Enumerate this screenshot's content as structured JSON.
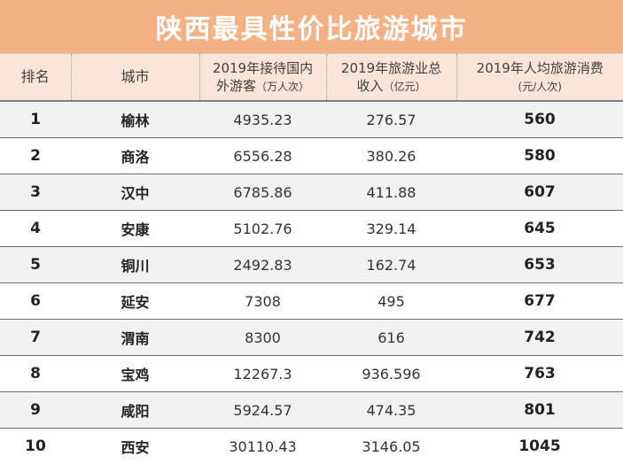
{
  "title": "陕西最具性价比旅游城市",
  "headers": {
    "rank": "排名",
    "city": "城市",
    "visitors_line1": "2019年接待国内",
    "visitors_line2": "外游客",
    "visitors_unit": "（万人次）",
    "revenue_line1": "2019年旅游业总",
    "revenue_line2": "收入",
    "revenue_unit": "（亿元）",
    "cost_line1": "2019年人均旅游消费",
    "cost_unit": "(元/人次)"
  },
  "rows": [
    {
      "rank": "1",
      "city": "榆林",
      "visitors": "4935.23",
      "revenue": "276.57",
      "cost": "560"
    },
    {
      "rank": "2",
      "city": "商洛",
      "visitors": "6556.28",
      "revenue": "380.26",
      "cost": "580"
    },
    {
      "rank": "3",
      "city": "汉中",
      "visitors": "6785.86",
      "revenue": "411.88",
      "cost": "607"
    },
    {
      "rank": "4",
      "city": "安康",
      "visitors": "5102.76",
      "revenue": "329.14",
      "cost": "645"
    },
    {
      "rank": "5",
      "city": "铜川",
      "visitors": "2492.83",
      "revenue": "162.74",
      "cost": "653"
    },
    {
      "rank": "6",
      "city": "延安",
      "visitors": "7308",
      "revenue": "495",
      "cost": "677"
    },
    {
      "rank": "7",
      "city": "渭南",
      "visitors": "8300",
      "revenue": "616",
      "cost": "742"
    },
    {
      "rank": "8",
      "city": "宝鸡",
      "visitors": "12267.3",
      "revenue": "936.596",
      "cost": "763"
    },
    {
      "rank": "9",
      "city": "咸阳",
      "visitors": "5924.57",
      "revenue": "474.35",
      "cost": "801"
    },
    {
      "rank": "10",
      "city": "西安",
      "visitors": "30110.43",
      "revenue": "3146.05",
      "cost": "1045"
    }
  ],
  "colors": {
    "title_bg": "#f4b183",
    "header_bg": "#fbe5d6",
    "stripe_bg": "#f2f2f2"
  }
}
